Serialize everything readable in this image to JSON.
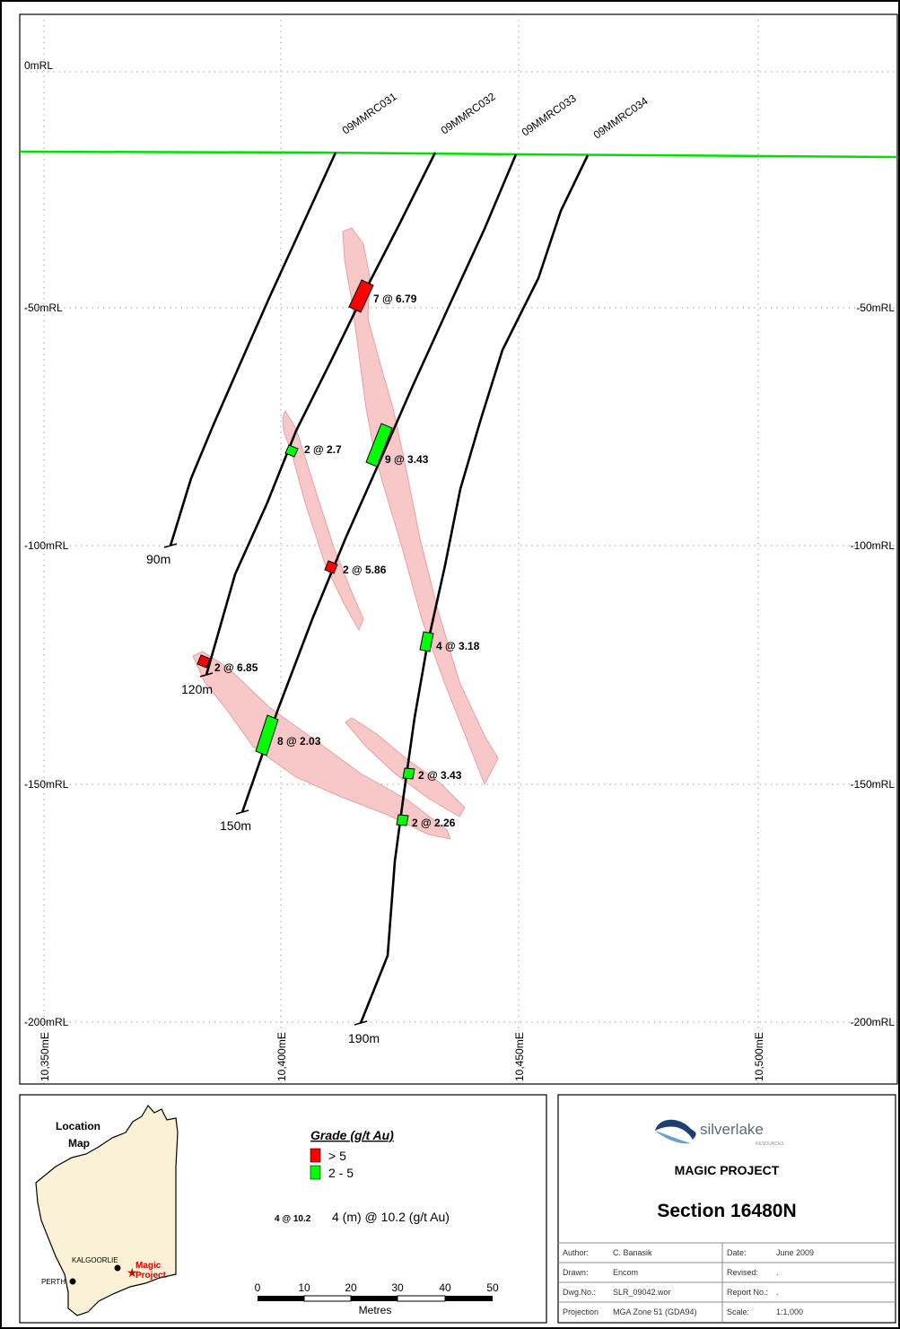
{
  "section": {
    "rl_labels": [
      "0mRL",
      "-50mRL",
      "-100mRL",
      "-150mRL",
      "-200mRL"
    ],
    "rl_labels_right": [
      "-50mRL",
      "-100mRL",
      "-150mRL",
      "-200mRL"
    ],
    "easting_labels": [
      "10,350mE",
      "10,400mE",
      "10,450mE",
      "10,500mE"
    ],
    "surface_color": "#00e000",
    "drillholes": [
      {
        "id": "09MMRC031",
        "end_depth": "90m"
      },
      {
        "id": "09MMRC032",
        "end_depth": "120m"
      },
      {
        "id": "09MMRC033",
        "end_depth": "150m"
      },
      {
        "id": "09MMRC034",
        "end_depth": "190m"
      }
    ],
    "intercepts": [
      {
        "label": "7 @ 6.79",
        "grade_class": "> 5"
      },
      {
        "label": "2 @ 2.7",
        "grade_class": "2 - 5"
      },
      {
        "label": "9 @ 3.43",
        "grade_class": "2 - 5"
      },
      {
        "label": "2 @ 5.86",
        "grade_class": "> 5"
      },
      {
        "label": "4 @ 3.18",
        "grade_class": "2 - 5"
      },
      {
        "label": "2 @ 6.85",
        "grade_class": "> 5"
      },
      {
        "label": "8 @ 2.03",
        "grade_class": "2 - 5"
      },
      {
        "label": "2 @ 3.43",
        "grade_class": "2 - 5"
      },
      {
        "label": "2 @ 2.26",
        "grade_class": "2 - 5"
      }
    ]
  },
  "location_map": {
    "title_line1": "Location",
    "title_line2": "Map",
    "towns": [
      "KALGOORLIE",
      "PERTH"
    ],
    "project_line1": "Magic",
    "project_line2": "Project"
  },
  "legend": {
    "title": "Grade (g/t Au)",
    "items": [
      {
        "label": "> 5",
        "color": "#ff0000"
      },
      {
        "label": "2 - 5",
        "color": "#00ff00"
      }
    ],
    "example_code": "4 @ 10.2",
    "example_desc": "4 (m) @ 10.2 (g/t Au)"
  },
  "scalebar": {
    "ticks": [
      "0",
      "10",
      "20",
      "30",
      "40",
      "50"
    ],
    "unit": "Metres"
  },
  "title_block": {
    "company": "silverlake",
    "company_sub": "RESOURCES",
    "project": "MAGIC PROJECT",
    "section": "Section 16480N",
    "rows": [
      {
        "l1": "Author:",
        "v1": "C. Banasik",
        "l2": "Date:",
        "v2": "June 2009"
      },
      {
        "l1": "Drawn:",
        "v1": "Encom",
        "l2": "Revised:",
        "v2": "."
      },
      {
        "l1": "Dwg.No.:",
        "v1": "SLR_09042.wor",
        "l2": "Report No.:",
        "v2": "."
      },
      {
        "l1": "Projection",
        "v1": "MGA Zone 51 (GDA94)",
        "l2": "Scale:",
        "v2": "1:1,000"
      }
    ]
  }
}
